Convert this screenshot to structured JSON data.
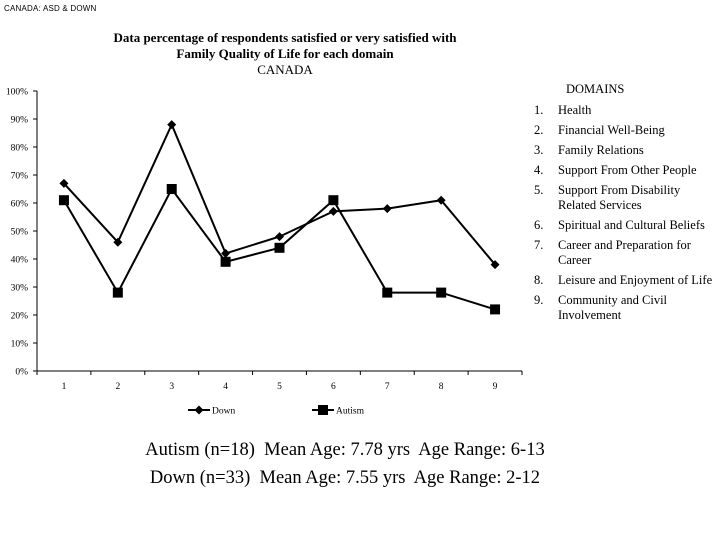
{
  "corner_label": "CANADA: ASD & DOWN",
  "chart_data": {
    "type": "line",
    "title_line1": "Data percentage of respondents satisfied or very satisfied with",
    "title_line2": "Family Quality of Life for each domain",
    "subtitle": "CANADA",
    "categories": [
      "1",
      "2",
      "3",
      "4",
      "5",
      "6",
      "7",
      "8",
      "9"
    ],
    "y_ticks": [
      "0%",
      "10%",
      "20%",
      "30%",
      "40%",
      "50%",
      "60%",
      "70%",
      "80%",
      "90%",
      "100%"
    ],
    "ylim": [
      0,
      100
    ],
    "grid": false,
    "legend_position": "bottom",
    "series": [
      {
        "name": "Down",
        "marker": "diamond",
        "color": "#000000",
        "values": [
          67,
          46,
          88,
          42,
          48,
          57,
          58,
          61,
          38
        ]
      },
      {
        "name": "Autism",
        "marker": "square",
        "color": "#000000",
        "values": [
          61,
          28,
          65,
          39,
          44,
          61,
          28,
          28,
          22
        ]
      }
    ]
  },
  "domains": {
    "heading": "DOMAINS",
    "items": [
      {
        "num": "1.",
        "label": "Health"
      },
      {
        "num": "2.",
        "label": "Financial Well-Being"
      },
      {
        "num": "3.",
        "label": "Family Relations"
      },
      {
        "num": "4.",
        "label": "Support From Other People"
      },
      {
        "num": "5.",
        "label": "Support From Disability Related Services"
      },
      {
        "num": "6.",
        "label": "Spiritual and Cultural Beliefs"
      },
      {
        "num": "7.",
        "label": "Career and Preparation for Career"
      },
      {
        "num": "8.",
        "label": "Leisure and Enjoyment of Life"
      },
      {
        "num": "9.",
        "label": "Community and Civil Involvement"
      }
    ]
  },
  "summary": {
    "line1": "Autism (n=18)  Mean Age: 7.78 yrs  Age Range: 6-13",
    "line2": "Down (n=33)  Mean Age: 7.55 yrs  Age Range: 2-12"
  }
}
